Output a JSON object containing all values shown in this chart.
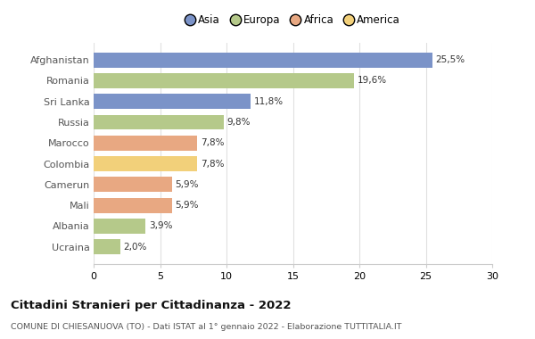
{
  "categories": [
    "Afghanistan",
    "Romania",
    "Sri Lanka",
    "Russia",
    "Marocco",
    "Colombia",
    "Camerun",
    "Mali",
    "Albania",
    "Ucraina"
  ],
  "values": [
    25.5,
    19.6,
    11.8,
    9.8,
    7.8,
    7.8,
    5.9,
    5.9,
    3.9,
    2.0
  ],
  "labels": [
    "25,5%",
    "19,6%",
    "11,8%",
    "9,8%",
    "7,8%",
    "7,8%",
    "5,9%",
    "5,9%",
    "3,9%",
    "2,0%"
  ],
  "colors": [
    "#7b93c8",
    "#b5c98a",
    "#7b93c8",
    "#b5c98a",
    "#e8a882",
    "#f2d07a",
    "#e8a882",
    "#e8a882",
    "#b5c98a",
    "#b5c98a"
  ],
  "legend": [
    {
      "label": "Asia",
      "color": "#7b93c8"
    },
    {
      "label": "Europa",
      "color": "#b5c98a"
    },
    {
      "label": "Africa",
      "color": "#e8a882"
    },
    {
      "label": "America",
      "color": "#f2d07a"
    }
  ],
  "xlim": [
    0,
    30
  ],
  "xticks": [
    0,
    5,
    10,
    15,
    20,
    25,
    30
  ],
  "title": "Cittadini Stranieri per Cittadinanza - 2022",
  "subtitle": "COMUNE DI CHIESANUOVA (TO) - Dati ISTAT al 1° gennaio 2022 - Elaborazione TUTTITALIA.IT",
  "background_color": "#ffffff",
  "grid_color": "#e0e0e0",
  "bar_height": 0.72,
  "label_fontsize": 7.5,
  "ytick_fontsize": 8,
  "xtick_fontsize": 8
}
